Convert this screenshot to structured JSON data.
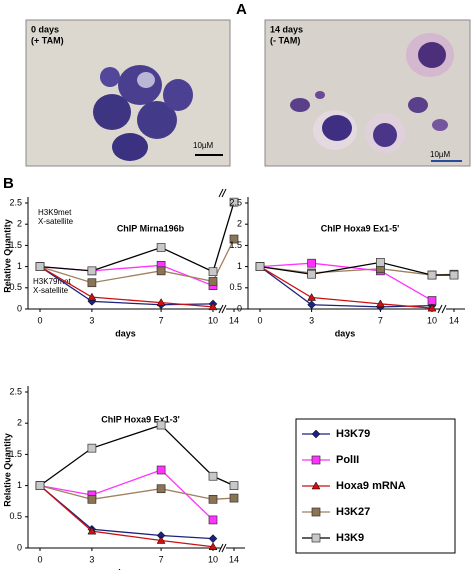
{
  "panel_a": {
    "label": "A",
    "left": {
      "line1": "0 days",
      "line2": "(+ TAM)",
      "scale": "10µM"
    },
    "right": {
      "line1": "14 days",
      "line2": "(- TAM)",
      "scale": "10µM"
    }
  },
  "panel_b": {
    "label": "B"
  },
  "chart_data": [
    {
      "type": "line",
      "title": "ChIP Mirna196b",
      "y_label": "Relative Quantity",
      "x_label": "days",
      "annotations": [
        "H3K9met",
        "X-satellite",
        "H3K79met",
        "X-satellite"
      ],
      "x": [
        0,
        3,
        7,
        10,
        14
      ],
      "xticks": [
        0,
        3,
        7,
        10,
        14
      ],
      "ylim": [
        0,
        2.5
      ],
      "yticks": [
        0,
        0.5,
        1,
        1.5,
        2,
        2.5
      ],
      "series": [
        {
          "name": "H3K79",
          "color": "#1a237e",
          "line_color": "#1a237e",
          "marker": "diamond",
          "values": [
            1,
            0.18,
            0.1,
            0.12,
            null
          ]
        },
        {
          "name": "PolII",
          "color": "#ff33ff",
          "line_color": "#ff33ff",
          "marker": "square",
          "values": [
            1,
            0.9,
            1.03,
            0.55,
            null
          ]
        },
        {
          "name": "Hoxa9 mRNA",
          "color": "#cc1111",
          "line_color": "#cc1111",
          "marker": "triangle",
          "values": [
            1,
            0.28,
            0.15,
            0.05,
            null
          ]
        },
        {
          "name": "H3K27",
          "color": "#8b7355",
          "line_color": "#a0805e",
          "marker": "square",
          "values": [
            1,
            0.62,
            0.9,
            0.65,
            1.65
          ]
        },
        {
          "name": "H3K9",
          "color": "#c8c8c8",
          "line_color": "#000000",
          "marker": "square",
          "values": [
            1,
            0.9,
            1.45,
            0.88,
            2.52
          ]
        }
      ]
    },
    {
      "type": "line",
      "title": "ChIP Hoxa9 Ex1-5'",
      "x_label": "days",
      "x": [
        0,
        3,
        7,
        10,
        14
      ],
      "xticks": [
        0,
        3,
        7,
        10,
        14
      ],
      "ylim": [
        0,
        2.5
      ],
      "yticks": [
        0,
        0.5,
        1,
        1.5,
        2,
        2.5
      ],
      "series": [
        {
          "name": "H3K79",
          "color": "#1a237e",
          "line_color": "#1a237e",
          "marker": "diamond",
          "values": [
            1,
            0.1,
            0.05,
            0.08,
            null
          ]
        },
        {
          "name": "PolII",
          "color": "#ff33ff",
          "line_color": "#ff33ff",
          "marker": "square",
          "values": [
            1,
            1.08,
            0.9,
            0.2,
            null
          ]
        },
        {
          "name": "Hoxa9 mRNA",
          "color": "#cc1111",
          "line_color": "#cc1111",
          "marker": "triangle",
          "values": [
            1,
            0.27,
            0.12,
            0.02,
            null
          ]
        },
        {
          "name": "H3K27",
          "color": "#8b7355",
          "line_color": "#a0805e",
          "marker": "square",
          "values": [
            1,
            0.85,
            0.95,
            0.8,
            0.82
          ]
        },
        {
          "name": "H3K9",
          "color": "#c8c8c8",
          "line_color": "#000000",
          "marker": "square",
          "values": [
            1,
            0.82,
            1.1,
            0.8,
            0.8
          ]
        }
      ]
    },
    {
      "type": "line",
      "title": "ChIP Hoxa9 Ex1-3'",
      "y_label": "Relative Quantity",
      "x_label": "days",
      "x": [
        0,
        3,
        7,
        10,
        14
      ],
      "xticks": [
        0,
        3,
        7,
        10,
        14
      ],
      "ylim": [
        0,
        2.5
      ],
      "yticks": [
        0,
        0.5,
        1,
        1.5,
        2,
        2.5
      ],
      "series": [
        {
          "name": "H3K79",
          "color": "#1a237e",
          "line_color": "#1a237e",
          "marker": "diamond",
          "values": [
            1,
            0.3,
            0.2,
            0.15,
            null
          ]
        },
        {
          "name": "PolII",
          "color": "#ff33ff",
          "line_color": "#ff33ff",
          "marker": "square",
          "values": [
            1,
            0.85,
            1.25,
            0.45,
            null
          ]
        },
        {
          "name": "Hoxa9 mRNA",
          "color": "#cc1111",
          "line_color": "#cc1111",
          "marker": "triangle",
          "values": [
            1,
            0.27,
            0.12,
            0.02,
            null
          ]
        },
        {
          "name": "H3K27",
          "color": "#8b7355",
          "line_color": "#a0805e",
          "marker": "square",
          "values": [
            1,
            0.78,
            0.95,
            0.78,
            0.8
          ]
        },
        {
          "name": "H3K9",
          "color": "#c8c8c8",
          "line_color": "#000000",
          "marker": "square",
          "values": [
            1,
            1.6,
            1.97,
            1.15,
            1.0
          ]
        }
      ]
    }
  ]
}
